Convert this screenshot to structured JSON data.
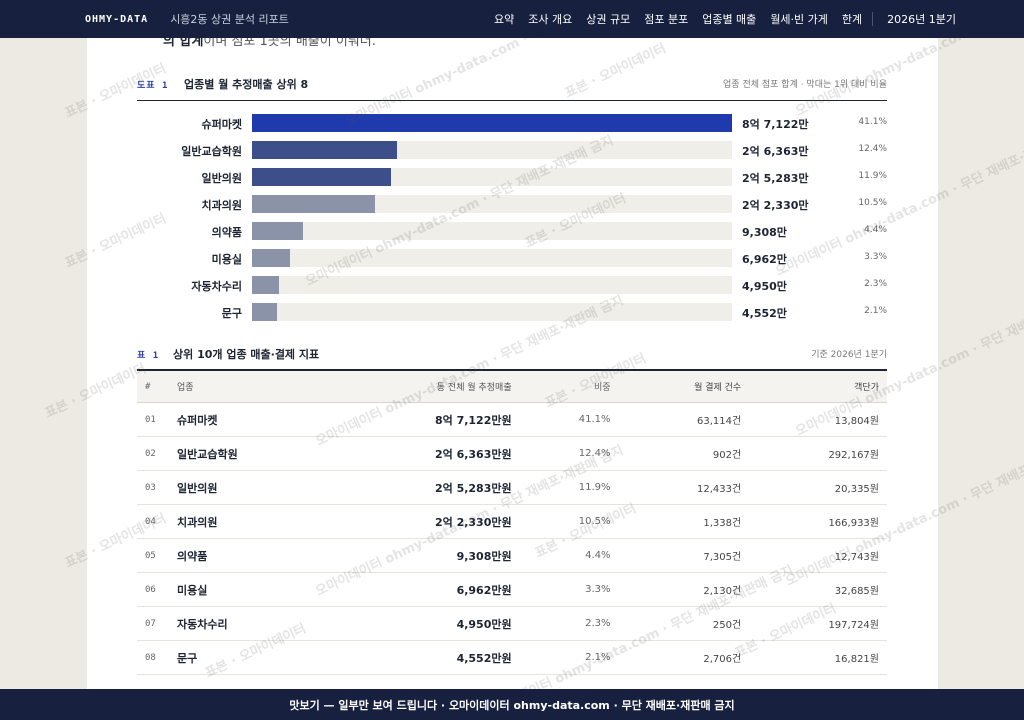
{
  "nav": {
    "brand": "OHMY-DATA",
    "subtitle": "시흥2동 상권 분석 리포트",
    "links": [
      "요약",
      "조사 개요",
      "상권 규모",
      "점포 분포",
      "업종별 매출",
      "월세·빈 가게",
      "한계"
    ],
    "date": "2026년 1분기"
  },
  "intro": {
    "bold": "의 합계",
    "text": "이며 점포 1곳의 배출이 이뤄더."
  },
  "figure": {
    "tag": "도표 1",
    "title": "업종별 월 추정매출 상위 8",
    "note": "업종 전체 점포 합계 · 막대는 1위 대비 비율"
  },
  "chart_data": {
    "type": "bar",
    "title": "업종별 월 추정매출 상위 8",
    "categories": [
      "슈퍼마켓",
      "일반교습학원",
      "일반의원",
      "치과의원",
      "의약품",
      "미용실",
      "자동차수리",
      "문구"
    ],
    "values": [
      87122,
      26363,
      25283,
      22330,
      9308,
      6962,
      4950,
      4552
    ],
    "value_labels": [
      "8억 7,122만",
      "2억 6,363만",
      "2억 5,283만",
      "2억 2,330만",
      "9,308만",
      "6,962만",
      "4,950만",
      "4,552만"
    ],
    "share_labels": [
      "41.1%",
      "12.4%",
      "11.9%",
      "10.5%",
      "4.4%",
      "3.3%",
      "2.3%",
      "2.1%"
    ],
    "colors": [
      "#1e3aad",
      "#3d4f8a",
      "#3d4f8a",
      "#8a93a8",
      "#8a93a8",
      "#8a93a8",
      "#8a93a8",
      "#8a93a8"
    ]
  },
  "table": {
    "tag": "표 1",
    "title": "상위 10개 업종 매출·결제 지표",
    "note": "기준 2026년 1분기",
    "headers": [
      "#",
      "업종",
      "동 전체 월 추정매출",
      "비중",
      "월 결제 건수",
      "객단가"
    ],
    "rows": [
      {
        "rank": "01",
        "name": "슈퍼마켓",
        "sales": "8억 7,122만원",
        "share": "41.1%",
        "count": "63,114건",
        "avg": "13,804원"
      },
      {
        "rank": "02",
        "name": "일반교습학원",
        "sales": "2억 6,363만원",
        "share": "12.4%",
        "count": "902건",
        "avg": "292,167원"
      },
      {
        "rank": "03",
        "name": "일반의원",
        "sales": "2억 5,283만원",
        "share": "11.9%",
        "count": "12,433건",
        "avg": "20,335원"
      },
      {
        "rank": "04",
        "name": "치과의원",
        "sales": "2억 2,330만원",
        "share": "10.5%",
        "count": "1,338건",
        "avg": "166,933원"
      },
      {
        "rank": "05",
        "name": "의약품",
        "sales": "9,308만원",
        "share": "4.4%",
        "count": "7,305건",
        "avg": "12,743원"
      },
      {
        "rank": "06",
        "name": "미용실",
        "sales": "6,962만원",
        "share": "3.3%",
        "count": "2,130건",
        "avg": "32,685원"
      },
      {
        "rank": "07",
        "name": "자동차수리",
        "sales": "4,950만원",
        "share": "2.3%",
        "count": "250건",
        "avg": "197,724원"
      },
      {
        "rank": "08",
        "name": "문구",
        "sales": "4,552만원",
        "share": "2.1%",
        "count": "2,706건",
        "avg": "16,821원"
      }
    ]
  },
  "watermark": {
    "lines": [
      "표본 · 오마이데이터",
      "오마이데이터 ohmy-data.com · 무단 재배포·재판매 금지"
    ]
  },
  "footer": {
    "text": "맛보기 — 일부만 보여 드립니다 · 오마이데이터 ohmy-data.com · 무단 재배포·재판매 금지"
  }
}
